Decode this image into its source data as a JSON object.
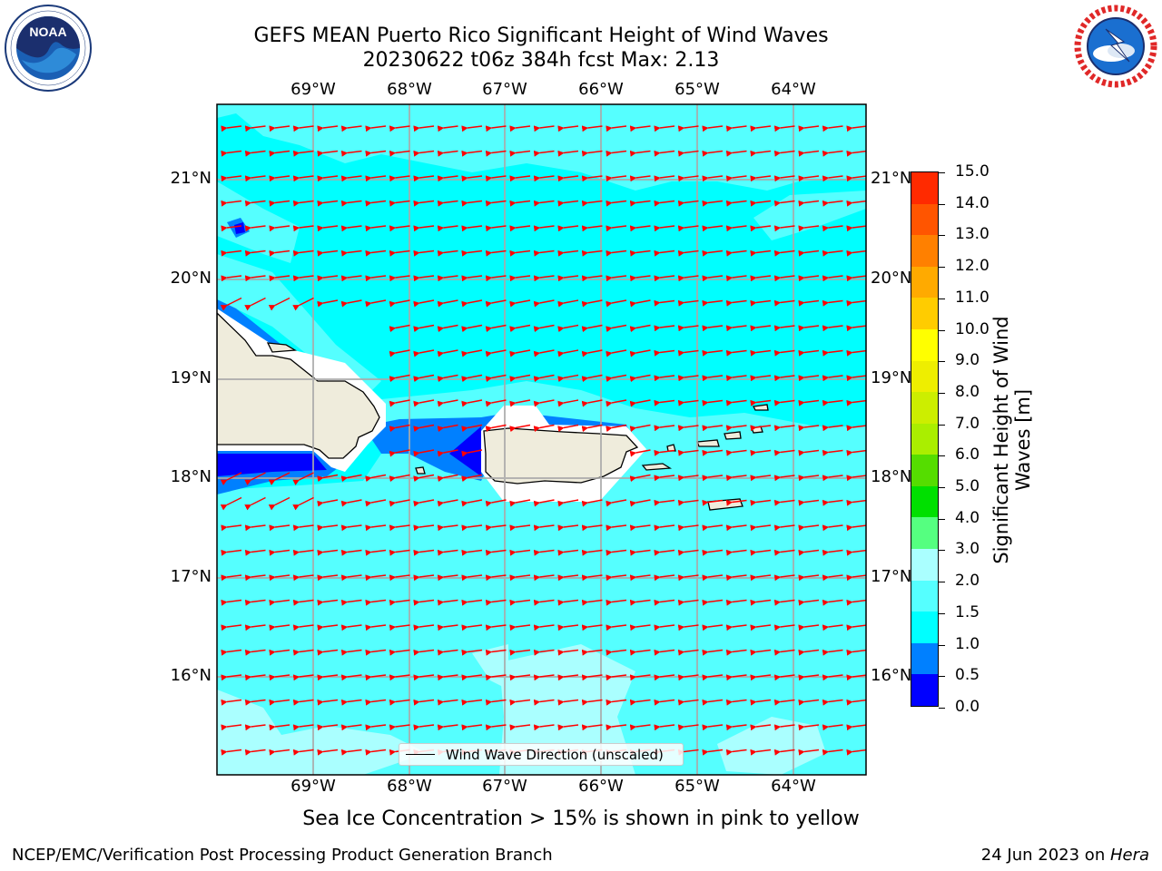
{
  "header": {
    "title_line1": "GEFS MEAN Puerto Rico Significant Height of Wind Waves",
    "title_line2": "20230622 t06z 384h fcst   Max: 2.13"
  },
  "logos": {
    "left": {
      "name": "NOAA",
      "ring_text": "NATIONAL OCEANIC AND ATMOSPHERIC ADMINISTRATION · U.S. DEPARTMENT OF COMMERCE"
    },
    "right": {
      "name": "NATIONAL WEATHER SERVICE"
    }
  },
  "map": {
    "lon_labels": [
      "69°W",
      "68°W",
      "67°W",
      "66°W",
      "65°W",
      "64°W"
    ],
    "lat_labels": [
      "21°N",
      "20°N",
      "19°N",
      "18°N",
      "17°N",
      "16°N"
    ],
    "legend_label": "Wind Wave Direction (unscaled)",
    "colors": {
      "ocean_1": "#00ffff",
      "ocean_15": "#55ffff",
      "ocean_2": "#aaffff",
      "shallow": "#0080ff",
      "deep": "#0000ff",
      "land": "#efecdc",
      "arrow": "#ff0000",
      "grid": "#aaaaaa"
    }
  },
  "colorbar": {
    "label": "Significant Height of Wind Waves [m]",
    "ticks": [
      "0.0",
      "0.5",
      "1.0",
      "1.5",
      "2.0",
      "3.0",
      "4.0",
      "5.0",
      "6.0",
      "7.0",
      "8.0",
      "9.0",
      "10.0",
      "11.0",
      "12.0",
      "13.0",
      "14.0",
      "15.0"
    ],
    "colors": [
      "#0000ff",
      "#0080ff",
      "#00ffff",
      "#55ffff",
      "#aaffff",
      "#55ff80",
      "#00e000",
      "#55dd00",
      "#aaee00",
      "#ccee00",
      "#eeee00",
      "#ffff00",
      "#ffcc00",
      "#ffaa00",
      "#ff8000",
      "#ff5500",
      "#ff2a00",
      "#ff0000"
    ]
  },
  "footer": {
    "note": "Sea Ice Concentration > 15% is shown in pink to yellow",
    "left": "NCEP/EMC/Verification Post Processing Product Generation Branch",
    "right_prefix": "24 Jun 2023 on ",
    "right_host": "Hera"
  }
}
